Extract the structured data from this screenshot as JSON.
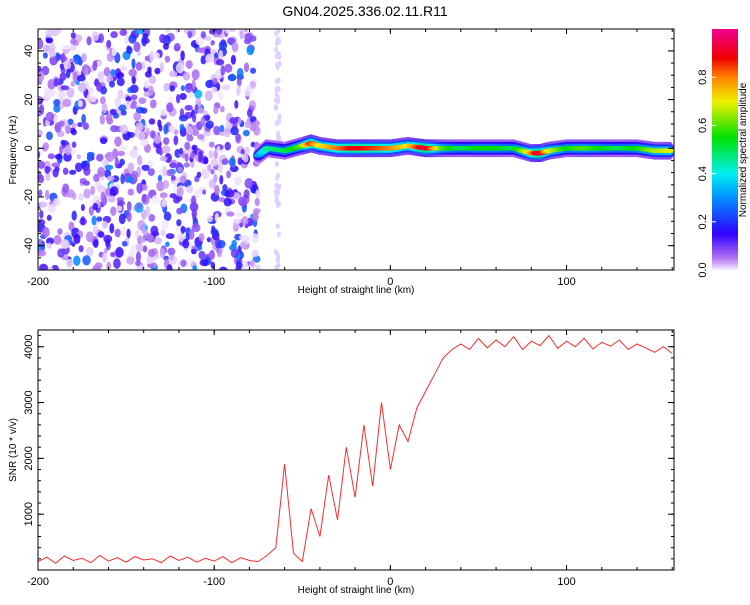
{
  "title": "GN04.2025.336.02.11.R11",
  "chart_data": [
    {
      "type": "heatmap",
      "title": "GN04.2025.336.02.11.R11",
      "xlabel": "Height of straight line (km)",
      "ylabel": "Frequency (Hz)",
      "xlim": [
        -200,
        161
      ],
      "ylim": [
        -50,
        49
      ],
      "xticks": [
        -200,
        -100,
        0,
        100
      ],
      "xtick_labels": [
        "-200",
        "-100",
        "0",
        "100"
      ],
      "yticks": [
        -40,
        -20,
        0,
        20,
        40
      ],
      "ytick_labels": [
        "-40",
        "-20",
        "0",
        "20",
        "40"
      ],
      "noise_region_x": [
        -200,
        -75
      ],
      "ridge": {
        "x": [
          -75,
          -70,
          -60,
          -50,
          -45,
          -40,
          -30,
          -20,
          -10,
          0,
          10,
          20,
          30,
          40,
          50,
          60,
          70,
          80,
          85,
          90,
          100,
          110,
          120,
          130,
          140,
          150,
          160
        ],
        "freq": [
          -3,
          0,
          -1,
          1,
          2,
          1,
          0,
          0,
          0,
          0,
          1,
          0,
          0,
          0,
          0,
          0,
          0,
          -2,
          -2,
          -1,
          0,
          0,
          0,
          0,
          0,
          -1,
          -1
        ],
        "amplitude": [
          0.3,
          0.45,
          0.5,
          0.6,
          0.85,
          0.7,
          0.8,
          0.9,
          0.85,
          0.8,
          0.7,
          0.95,
          0.6,
          0.5,
          0.55,
          0.55,
          0.5,
          0.75,
          0.95,
          0.7,
          0.55,
          0.6,
          0.55,
          0.5,
          0.55,
          0.65,
          0.7
        ]
      },
      "colorbar": {
        "label": "Normalized spectral amplitude",
        "range": [
          0,
          1
        ],
        "ticks": [
          0.0,
          0.2,
          0.4,
          0.6,
          0.8
        ],
        "tick_labels": [
          "0.0",
          "0.2",
          "0.4",
          "0.6",
          "0.8"
        ]
      }
    },
    {
      "type": "line",
      "xlabel": "Height of straight line (km)",
      "ylabel": "SNR (10 * v/v)",
      "xlim": [
        -200,
        161
      ],
      "ylim": [
        0,
        4300
      ],
      "xticks": [
        -200,
        -100,
        0,
        100
      ],
      "xtick_labels": [
        "-200",
        "-100",
        "0",
        "100"
      ],
      "yticks": [
        1000,
        2000,
        3000,
        4000
      ],
      "ytick_labels": [
        "1000",
        "2000",
        "3000",
        "4000"
      ],
      "color": "#f03030",
      "x": [
        -200,
        -195,
        -190,
        -185,
        -180,
        -175,
        -170,
        -165,
        -160,
        -155,
        -150,
        -145,
        -140,
        -135,
        -130,
        -125,
        -120,
        -115,
        -110,
        -105,
        -100,
        -95,
        -90,
        -85,
        -80,
        -75,
        -70,
        -65,
        -60,
        -55,
        -50,
        -45,
        -40,
        -35,
        -30,
        -25,
        -20,
        -15,
        -10,
        -5,
        0,
        5,
        10,
        15,
        20,
        25,
        30,
        35,
        40,
        45,
        50,
        55,
        60,
        65,
        70,
        75,
        80,
        85,
        90,
        95,
        100,
        105,
        110,
        115,
        120,
        125,
        130,
        135,
        140,
        145,
        150,
        155,
        160
      ],
      "values": [
        150,
        230,
        120,
        250,
        170,
        210,
        130,
        260,
        160,
        220,
        140,
        240,
        180,
        200,
        130,
        250,
        170,
        230,
        140,
        210,
        160,
        240,
        130,
        220,
        170,
        150,
        260,
        400,
        1900,
        300,
        150,
        1100,
        600,
        1700,
        900,
        2200,
        1300,
        2600,
        1500,
        3000,
        1800,
        2600,
        2300,
        2900,
        3200,
        3500,
        3800,
        3950,
        4050,
        3950,
        4150,
        3980,
        4120,
        4000,
        4180,
        3950,
        4100,
        4020,
        4200,
        3970,
        4100,
        4000,
        4150,
        3960,
        4080,
        4010,
        4120,
        3950,
        4050,
        3980,
        3900,
        4000,
        3880
      ]
    }
  ]
}
